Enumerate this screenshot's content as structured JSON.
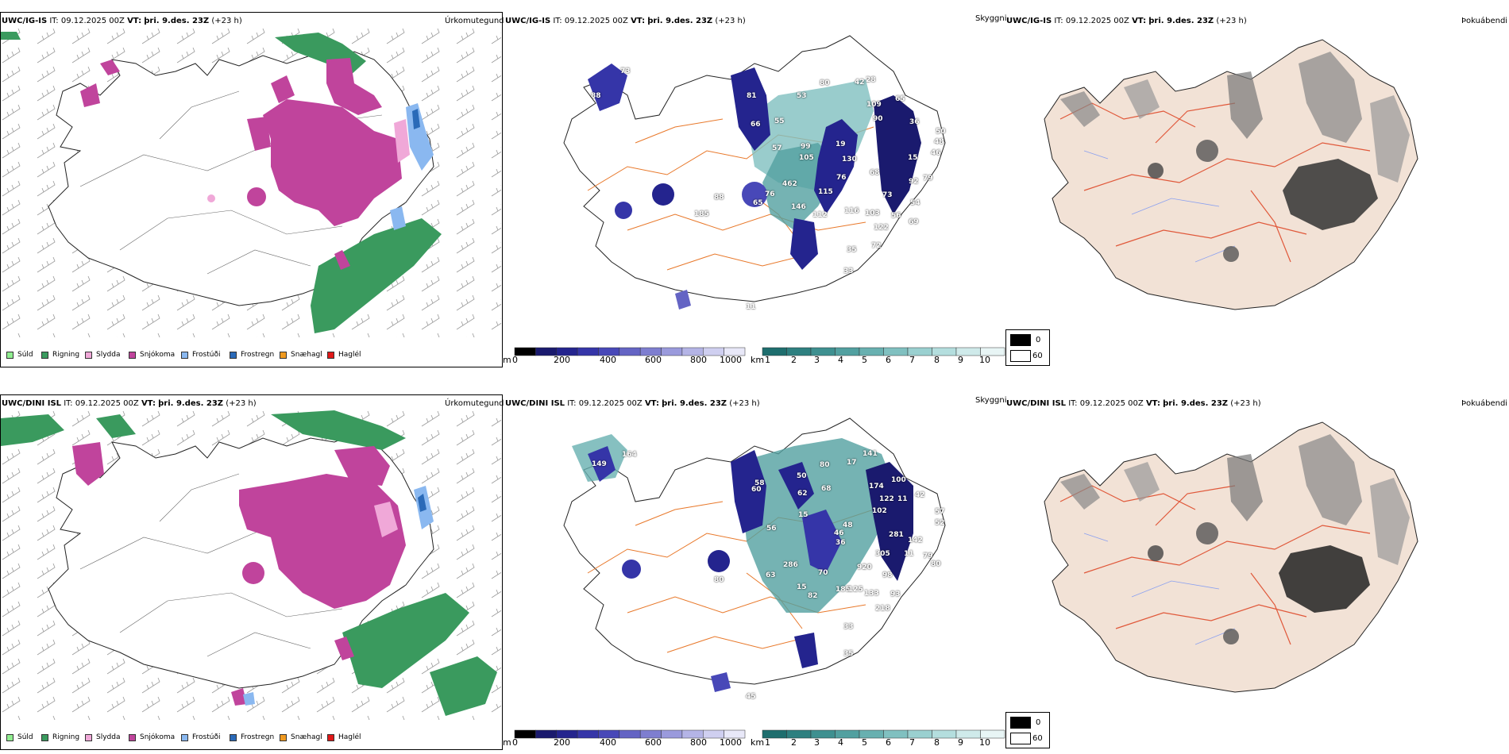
{
  "rows": [
    {
      "model": "UWC/IG-IS",
      "it_label": "IT:",
      "it_value": "09.12.2025 00Z",
      "vt_label": "VT:",
      "vt_value": "þri. 9.des. 23Z",
      "lead": "(+23 h)",
      "panel_titles": {
        "precip": "Úrkomutegund",
        "vis": "Skyggni",
        "fog": "Þokuábendi"
      },
      "value_labels": [
        "73",
        "88",
        "81",
        "66",
        "55",
        "57",
        "99",
        "105",
        "53",
        "80",
        "42",
        "28",
        "109",
        "90",
        "65",
        "36",
        "50",
        "48",
        "46",
        "15",
        "19",
        "130",
        "76",
        "68",
        "79",
        "92",
        "462",
        "146",
        "115",
        "112",
        "116",
        "103",
        "56",
        "73",
        "54",
        "122",
        "69",
        "72",
        "35",
        "33",
        "88",
        "65",
        "76",
        "185",
        "11"
      ]
    },
    {
      "model": "UWC/DINI ISL",
      "it_label": "IT:",
      "it_value": "09.12.2025 00Z",
      "vt_label": "VT:",
      "vt_value": "þri. 9.des. 23Z",
      "lead": "(+23 h)",
      "panel_titles": {
        "precip": "Úrkomutegund",
        "vis": "Skyggni",
        "fog": "Þokuábendi"
      },
      "value_labels": [
        "149",
        "164",
        "58",
        "56",
        "15",
        "60",
        "62",
        "50",
        "80",
        "68",
        "17",
        "141",
        "174",
        "100",
        "122",
        "11",
        "102",
        "42",
        "57",
        "52",
        "48",
        "46",
        "36",
        "79",
        "281",
        "305",
        "142",
        "11",
        "80",
        "70",
        "82",
        "185",
        "125",
        "920",
        "98",
        "133",
        "93",
        "218",
        "33",
        "35",
        "286",
        "80",
        "63",
        "15",
        "45"
      ]
    }
  ],
  "precip_legend": [
    {
      "label": "Súld",
      "color": "#90ee90"
    },
    {
      "label": "Rigning",
      "color": "#3a9a5e"
    },
    {
      "label": "Slydda",
      "color": "#f0a8d8"
    },
    {
      "label": "Snjókoma",
      "color": "#c0449c"
    },
    {
      "label": "Frostúði",
      "color": "#8ab8f0"
    },
    {
      "label": "Frostregn",
      "color": "#2a6ab8"
    },
    {
      "label": "Snæhagl",
      "color": "#f09a20"
    },
    {
      "label": "Haglél",
      "color": "#e01818"
    }
  ],
  "height_bar": {
    "unit": "m",
    "ticks": [
      "0",
      "200",
      "400",
      "600",
      "800",
      "1000"
    ],
    "colors": [
      "#000000",
      "#1a1a6e",
      "#24248e",
      "#3535a8",
      "#4848b8",
      "#6464c4",
      "#7e7ed0",
      "#9a9adc",
      "#b4b4e6",
      "#cfcff0",
      "#e8e8f8"
    ]
  },
  "vis_bar": {
    "unit": "km",
    "ticks": [
      "1",
      "2",
      "3",
      "4",
      "5",
      "6",
      "7",
      "8",
      "9",
      "10"
    ],
    "colors": [
      "#1e6e6e",
      "#2e8080",
      "#3e9090",
      "#52a0a0",
      "#68b0b0",
      "#80c0c0",
      "#9ad0d0",
      "#b4dede",
      "#cfeaea",
      "#e8f5f5"
    ]
  },
  "fog_legend": {
    "dark": "0",
    "light": "60"
  },
  "colors": {
    "snow": "#c0449c",
    "rain": "#3a9a5e",
    "land": "#f2e2d6",
    "road": "#e8782a",
    "river": "#8aa0f0",
    "fog_road": "#e0583a"
  }
}
